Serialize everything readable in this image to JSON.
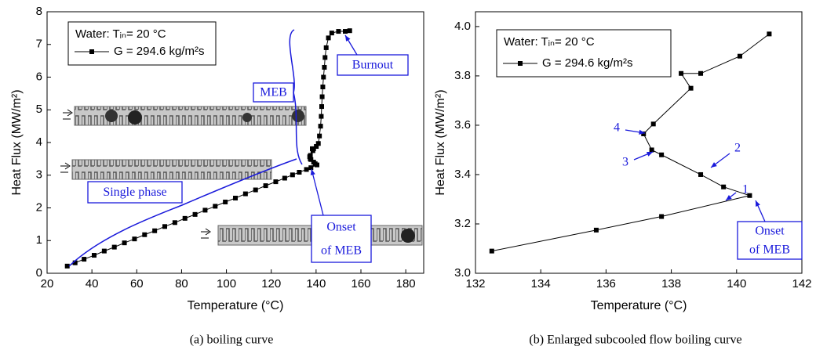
{
  "chart_data": [
    {
      "type": "line",
      "caption": "(a) boiling curve",
      "x_label": "Temperature (°C)",
      "y_label": "Heat Flux (MW/m²)",
      "xlim": [
        20,
        188
      ],
      "ylim": [
        0,
        8
      ],
      "xticks": [
        20,
        40,
        60,
        80,
        100,
        120,
        140,
        160,
        180
      ],
      "yticks": [
        0,
        1,
        2,
        3,
        4,
        5,
        6,
        7,
        8
      ],
      "legend": {
        "title": "Water:  Tᵢₙ= 20 °C",
        "position": "upper left"
      },
      "series": [
        {
          "name": "G = 294.6 kg/m²s",
          "color": "#000000",
          "marker": "square",
          "x": [
            29,
            32.5,
            36.5,
            41,
            45.5,
            50,
            54.5,
            59,
            63.5,
            68,
            72.5,
            77,
            81.5,
            86,
            90.5,
            95,
            99.5,
            104,
            108.5,
            113,
            117.5,
            122,
            126,
            129.5,
            132.5,
            135.7,
            137.7,
            140.4,
            139.6,
            138.9,
            137.7,
            137.4,
            137.15,
            137.45,
            138.6,
            138.3,
            138.9,
            140.1,
            141,
            141.5,
            142,
            142.3,
            142.5,
            142.7,
            143,
            143.3,
            143.7,
            144,
            144.5,
            145.5,
            147,
            150,
            153,
            155
          ],
          "values": [
            0.22,
            0.32,
            0.43,
            0.55,
            0.68,
            0.8,
            0.93,
            1.05,
            1.18,
            1.3,
            1.43,
            1.55,
            1.68,
            1.8,
            1.93,
            2.05,
            2.18,
            2.3,
            2.43,
            2.55,
            2.68,
            2.8,
            2.91,
            3.01,
            3.09,
            3.175,
            3.23,
            3.315,
            3.35,
            3.4,
            3.48,
            3.5,
            3.565,
            3.605,
            3.75,
            3.81,
            3.81,
            3.88,
            3.97,
            4.2,
            4.5,
            4.8,
            5.1,
            5.4,
            5.7,
            6.0,
            6.3,
            6.6,
            6.9,
            7.2,
            7.35,
            7.4,
            7.4,
            7.42
          ]
        }
      ],
      "annotations": [
        {
          "lines": [
            "Burnout"
          ]
        },
        {
          "lines": [
            "MEB"
          ]
        },
        {
          "lines": [
            "Single phase"
          ]
        },
        {
          "lines": [
            "Onset",
            "of MEB"
          ]
        }
      ]
    },
    {
      "type": "line",
      "caption": "(b) Enlarged subcooled flow boiling curve",
      "x_label": "Temperature (°C)",
      "y_label": "Heat Flux (MW/m²)",
      "xlim": [
        132,
        142
      ],
      "ylim": [
        3.0,
        4.06
      ],
      "xticks": [
        132,
        134,
        136,
        138,
        140,
        142
      ],
      "yticks": [
        {
          "value": 3.0,
          "label": "3.0"
        },
        3.2,
        3.4,
        3.6,
        3.8,
        {
          "value": 4.0,
          "label": "4.0"
        }
      ],
      "legend": {
        "title": "Water:  Tᵢₙ= 20 °C",
        "position": "upper left"
      },
      "series": [
        {
          "name": "G = 294.6 kg/m²s",
          "color": "#000000",
          "marker": "square",
          "x": [
            132.5,
            135.7,
            137.7,
            140.4,
            139.6,
            138.9,
            137.7,
            137.4,
            137.15,
            137.45,
            138.6,
            138.3,
            138.9,
            140.1,
            141
          ],
          "values": [
            3.09,
            3.175,
            3.23,
            3.315,
            3.35,
            3.4,
            3.48,
            3.5,
            3.565,
            3.605,
            3.75,
            3.81,
            3.81,
            3.88,
            3.97
          ]
        }
      ],
      "annotations": [
        {
          "lines": [
            "Onset",
            "of MEB"
          ]
        },
        {
          "lines": [
            "1"
          ]
        },
        {
          "lines": [
            "2"
          ]
        },
        {
          "lines": [
            "3"
          ]
        },
        {
          "lines": [
            "4"
          ]
        }
      ]
    }
  ]
}
